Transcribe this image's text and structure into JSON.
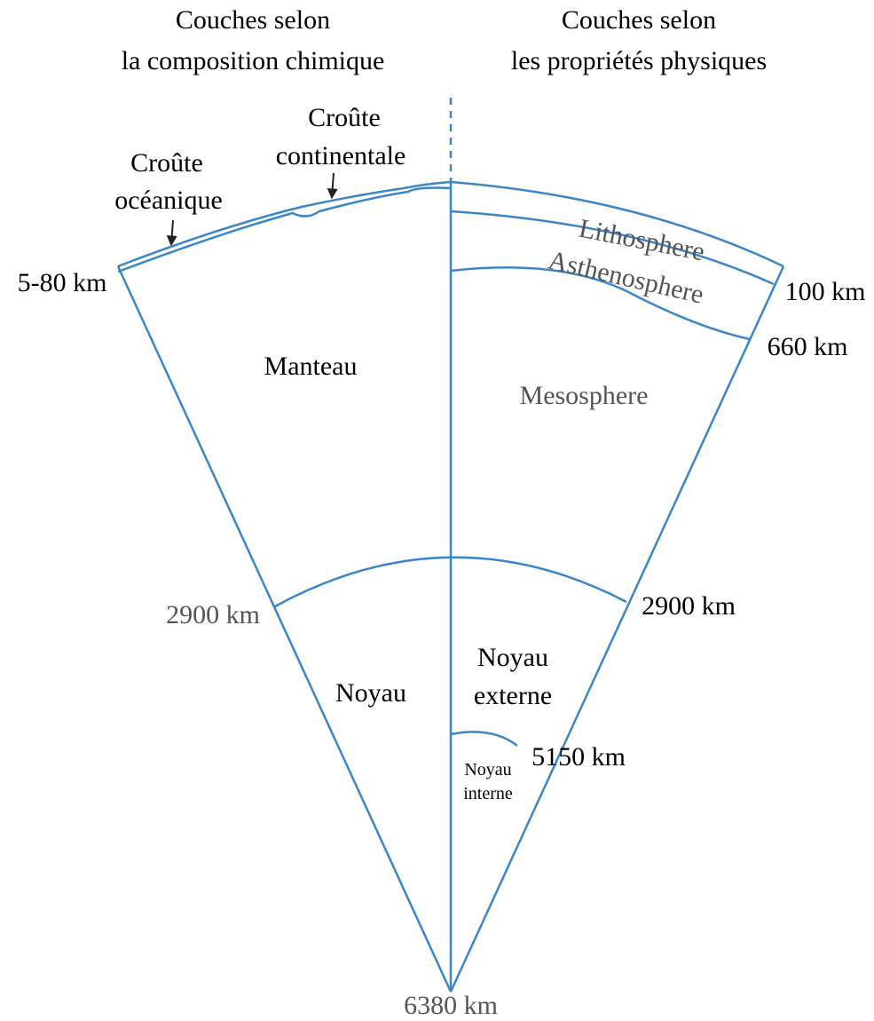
{
  "headings": {
    "chemical": [
      "Couches selon",
      "la composition chimique"
    ],
    "physical": [
      "Couches selon",
      "les propriétés physiques"
    ]
  },
  "chemical": {
    "oceanic_crust": [
      "Croûte",
      "océanique"
    ],
    "continental_crust": [
      "Croûte",
      "continentale"
    ],
    "crust_depth": "5-80 km",
    "mantle": "Manteau",
    "core_depth": "2900 km",
    "core": "Noyau",
    "center_depth": "6380 km"
  },
  "physical": {
    "lithosphere": "Lithosphere",
    "lithosphere_depth": "100 km",
    "asthenosphere": "Asthenosphere",
    "asthenosphere_depth": "660 km",
    "mesosphere": "Mesosphere",
    "outer_core_depth": "2900 km",
    "outer_core": [
      "Noyau",
      "externe"
    ],
    "inner_core_depth": "5150 km",
    "inner_core": [
      "Noyau",
      "interne"
    ]
  }
}
